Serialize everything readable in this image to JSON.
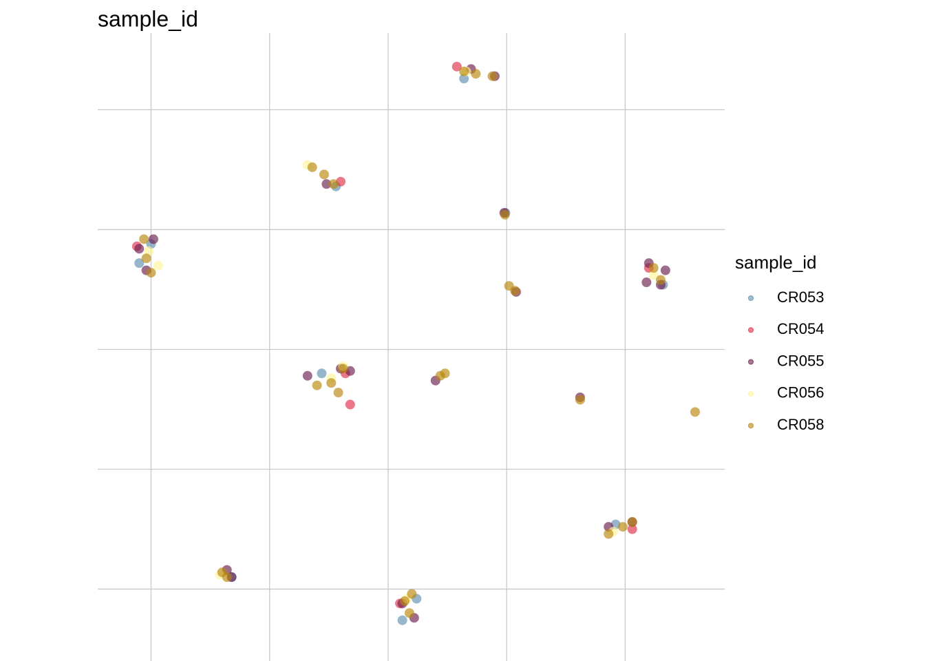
{
  "chart_data": {
    "type": "scatter",
    "title": "sample_id",
    "legend_title": "sample_id",
    "legend_position": "right",
    "grid": true,
    "xlim": [
      -12.25,
      14.2
    ],
    "ylim": [
      -13.0,
      13.2
    ],
    "xticks": [
      -10,
      -5,
      0,
      5,
      10
    ],
    "yticks": [
      -10,
      -5,
      0,
      5,
      10
    ],
    "series": [
      {
        "name": "CR053",
        "color": "#5f8fb0",
        "x": [
          3.2,
          -2.2,
          -10.5,
          -10.0,
          11.6,
          -2.8,
          0.6,
          1.2,
          -6.6,
          4.95,
          9.6
        ],
        "values": [
          11.3,
          6.8,
          3.6,
          4.4,
          2.7,
          -1.0,
          -11.3,
          -10.4,
          -9.5,
          5.7,
          -7.3
        ]
      },
      {
        "name": "CR054",
        "color": "#e0304a",
        "x": [
          2.9,
          -2.0,
          -10.6,
          -1.6,
          -1.8,
          11.0,
          10.3,
          0.5
        ],
        "values": [
          11.8,
          7.0,
          4.3,
          -2.3,
          -1.0,
          3.4,
          -7.5,
          -10.6
        ]
      },
      {
        "name": "CR055",
        "color": "#6b1f4e",
        "x": [
          3.5,
          4.5,
          -10.5,
          -10.2,
          -9.9,
          11.0,
          11.5,
          11.7,
          10.9,
          -3.4,
          -2.0,
          -1.6,
          2.0,
          8.1,
          9.3,
          10.3,
          -6.8,
          -6.6,
          0.6,
          1.1,
          5.4,
          4.9,
          -2.6
        ],
        "values": [
          11.7,
          11.4,
          4.2,
          3.3,
          4.6,
          3.6,
          2.7,
          3.3,
          2.8,
          -1.1,
          -0.8,
          -0.9,
          -1.3,
          -2.0,
          -7.4,
          -7.2,
          -9.2,
          -9.5,
          -10.6,
          -11.2,
          2.4,
          5.7,
          6.9
        ]
      },
      {
        "name": "CR056",
        "color": "#fff59a",
        "x": [
          3.3,
          -3.4,
          -10.1,
          -9.7,
          -2.4,
          -1.9,
          9.5,
          -7.1,
          0.8,
          11.2
        ],
        "values": [
          11.6,
          7.7,
          4.1,
          3.5,
          -1.2,
          -0.7,
          -7.6,
          -9.4,
          -10.4,
          3.1
        ]
      },
      {
        "name": "CR058",
        "color": "#b8860b",
        "x": [
          3.2,
          3.7,
          4.4,
          -3.2,
          -2.7,
          -2.3,
          -10.3,
          -10.2,
          -10.0,
          4.93,
          5.1,
          5.35,
          11.2,
          11.5,
          -3.0,
          -2.4,
          -1.9,
          -2.1,
          2.2,
          2.4,
          8.1,
          12.95,
          9.3,
          9.9,
          10.3,
          -7.0,
          -6.8,
          0.7,
          0.9,
          1.0
        ],
        "values": [
          11.6,
          11.5,
          11.4,
          7.6,
          7.3,
          6.9,
          4.6,
          3.8,
          3.2,
          5.62,
          2.65,
          2.45,
          3.4,
          2.9,
          -1.5,
          -1.4,
          -0.8,
          -1.8,
          -1.1,
          -1.0,
          -2.1,
          -2.61,
          -7.7,
          -7.4,
          -7.2,
          -9.3,
          -9.5,
          -10.5,
          -11.0,
          -10.2
        ]
      }
    ]
  }
}
